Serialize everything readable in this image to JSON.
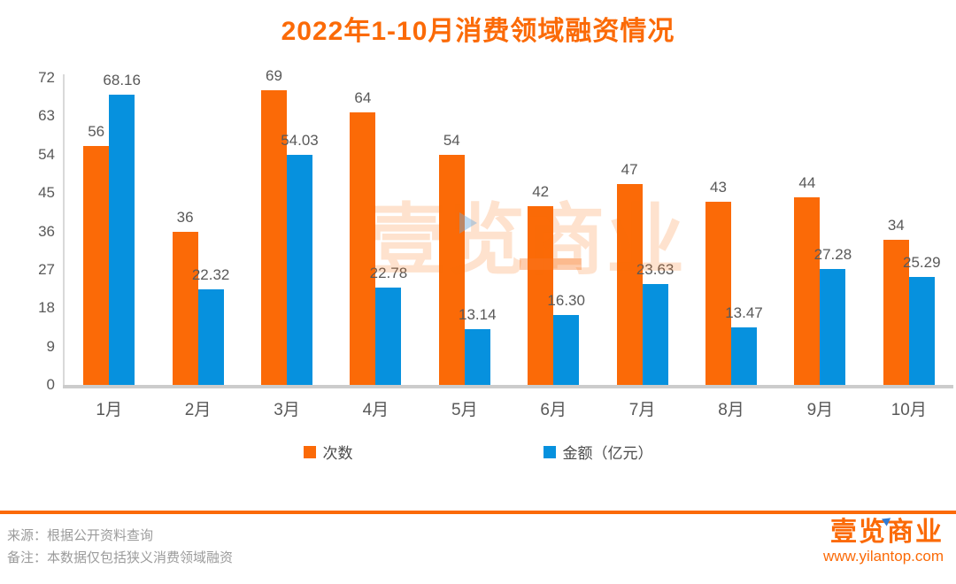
{
  "title": "2022年1-10月消费领域融资情况",
  "colors": {
    "orange": "#fb6a07",
    "blue": "#0691de",
    "value_label": "#595959",
    "axis": "#cccccc",
    "footer_text": "#9b9b9b"
  },
  "chart_data": {
    "type": "bar",
    "title": "2022年1-10月消费领域融资情况",
    "categories": [
      "1月",
      "2月",
      "3月",
      "4月",
      "5月",
      "6月",
      "7月",
      "8月",
      "9月",
      "10月"
    ],
    "series": [
      {
        "name": "次数",
        "color": "#fb6a07",
        "values": [
          56,
          36,
          69,
          64,
          54,
          42,
          47,
          43,
          44,
          34
        ],
        "labels": [
          "56",
          "36",
          "69",
          "64",
          "54",
          "42",
          "47",
          "43",
          "44",
          "34"
        ]
      },
      {
        "name": "金额（亿元）",
        "color": "#0691de",
        "values": [
          68.16,
          22.32,
          54.03,
          22.78,
          13.14,
          16.3,
          23.63,
          13.47,
          27.28,
          25.29
        ],
        "labels": [
          "68.16",
          "22.32",
          "54.03",
          "22.78",
          "13.14",
          "16.30",
          "23.63",
          "13.47",
          "27.28",
          "25.29"
        ]
      }
    ],
    "xlabel": "",
    "ylabel": "",
    "ylim": [
      0,
      72
    ],
    "yticks": [
      0,
      9,
      18,
      27,
      36,
      45,
      54,
      63,
      72
    ],
    "grid": false,
    "legend_position": "bottom"
  },
  "legend": [
    {
      "label": "次数",
      "color": "#fb6a07"
    },
    {
      "label": "金额（亿元）",
      "color": "#0691de"
    }
  ],
  "watermark": {
    "text": "壹览商业"
  },
  "footer": {
    "source_line": "来源：根据公开资料查询",
    "note_line": "备注：本数据仅包括狭义消费领域融资",
    "logo_text": "壹览商业",
    "website": "www.yilantop.com"
  }
}
